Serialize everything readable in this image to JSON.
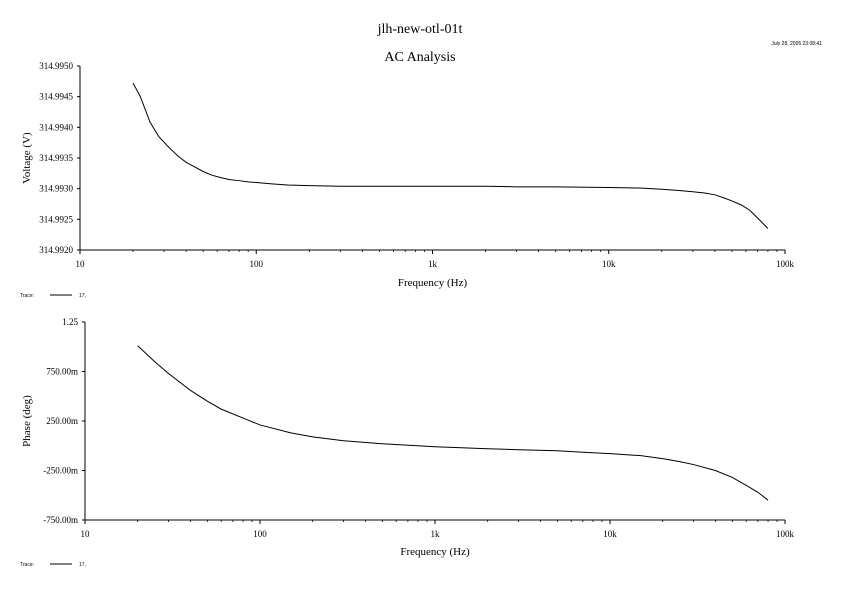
{
  "header": {
    "title": "jlh-new-otl-01t",
    "subtitle": "AC Analysis",
    "timestamp": "July 28, 2005 23:08:41"
  },
  "chart_data": [
    {
      "type": "line",
      "xscale": "log",
      "xlim": [
        10,
        100000
      ],
      "ylim": [
        314.992,
        314.995
      ],
      "xlabel": "Frequency (Hz)",
      "ylabel": "Voltage (V)",
      "xticks": [
        {
          "value": 10,
          "label": "10"
        },
        {
          "value": 100,
          "label": "100"
        },
        {
          "value": 1000,
          "label": "1k"
        },
        {
          "value": 10000,
          "label": "10k"
        },
        {
          "value": 100000,
          "label": "100k"
        }
      ],
      "yticks": [
        {
          "value": 314.992,
          "label": "314.9920"
        },
        {
          "value": 314.9925,
          "label": "314.9925"
        },
        {
          "value": 314.993,
          "label": "314.9930"
        },
        {
          "value": 314.9935,
          "label": "314.9935"
        },
        {
          "value": 314.994,
          "label": "314.9940"
        },
        {
          "value": 314.9945,
          "label": "314.9945"
        },
        {
          "value": 314.995,
          "label": "314.9950"
        }
      ],
      "legend": {
        "label": "Trace:",
        "entry": "17,"
      },
      "series": [
        {
          "x": [
            20,
            22,
            25,
            28,
            32,
            36,
            40,
            45,
            50,
            56,
            63,
            70,
            80,
            90,
            100,
            120,
            150,
            200,
            300,
            500,
            1000,
            2000,
            3000,
            5000,
            10000,
            15000,
            20000,
            25000,
            30000,
            35000,
            40000,
            45000,
            50000,
            56000,
            63000,
            70000,
            80000
          ],
          "y": [
            314.99472,
            314.9945,
            314.99408,
            314.99385,
            314.99367,
            314.99353,
            314.99343,
            314.99335,
            314.99328,
            314.99322,
            314.99318,
            314.99315,
            314.99313,
            314.99311,
            314.9931,
            314.99308,
            314.99306,
            314.99305,
            314.99304,
            314.99304,
            314.99304,
            314.99304,
            314.99303,
            314.99303,
            314.99302,
            314.99301,
            314.99299,
            314.99297,
            314.99295,
            314.99293,
            314.9929,
            314.99285,
            314.9928,
            314.99274,
            314.99265,
            314.99252,
            314.99235
          ]
        }
      ]
    },
    {
      "type": "line",
      "xscale": "log",
      "xlim": [
        10,
        100000
      ],
      "ylim": [
        -0.75,
        1.25
      ],
      "xlabel": "Frequency (Hz)",
      "ylabel": "Phase (deg)",
      "xticks": [
        {
          "value": 10,
          "label": "10"
        },
        {
          "value": 100,
          "label": "100"
        },
        {
          "value": 1000,
          "label": "1k"
        },
        {
          "value": 10000,
          "label": "10k"
        },
        {
          "value": 100000,
          "label": "100k"
        }
      ],
      "yticks": [
        {
          "value": -0.75,
          "label": "-750.00m"
        },
        {
          "value": -0.25,
          "label": "-250.00m"
        },
        {
          "value": 0.25,
          "label": "250.00m"
        },
        {
          "value": 0.75,
          "label": "750.00m"
        },
        {
          "value": 1.25,
          "label": "1.25"
        }
      ],
      "legend": {
        "label": "Trace:",
        "entry": "17,"
      },
      "series": [
        {
          "x": [
            20,
            25,
            30,
            40,
            50,
            60,
            80,
            100,
            150,
            200,
            300,
            500,
            1000,
            2000,
            3000,
            5000,
            7000,
            10000,
            15000,
            20000,
            25000,
            30000,
            40000,
            50000,
            60000,
            70000,
            80000
          ],
          "y": [
            1.01,
            0.85,
            0.73,
            0.56,
            0.45,
            0.37,
            0.28,
            0.21,
            0.13,
            0.09,
            0.05,
            0.02,
            -0.01,
            -0.03,
            -0.04,
            -0.05,
            -0.065,
            -0.08,
            -0.1,
            -0.13,
            -0.16,
            -0.19,
            -0.25,
            -0.32,
            -0.4,
            -0.47,
            -0.55
          ]
        }
      ]
    }
  ]
}
